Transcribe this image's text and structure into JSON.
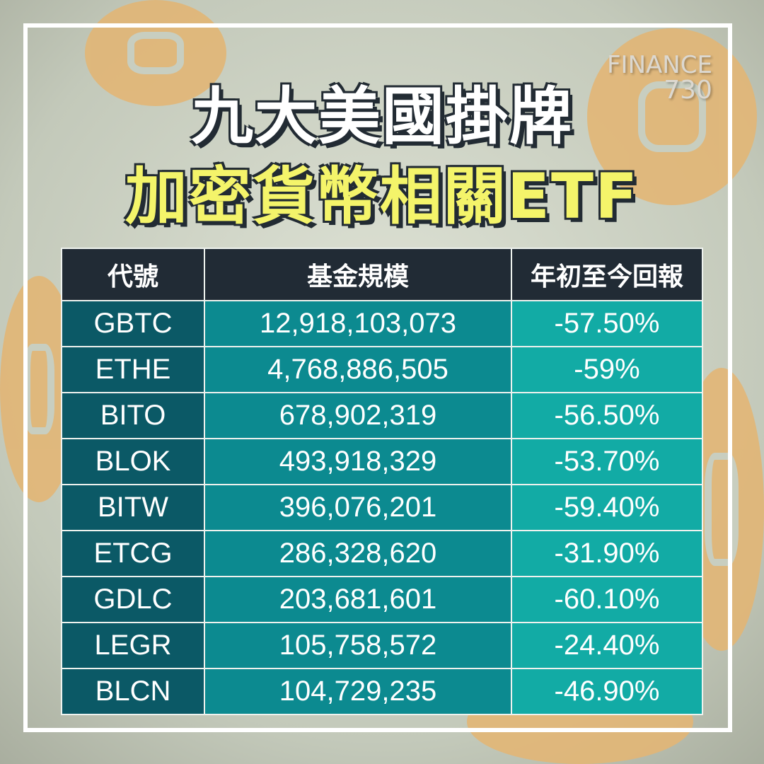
{
  "title": {
    "line1": "九大美國掛牌",
    "line2": "加密貨幣相關ETF"
  },
  "logo": {
    "text": "FINANCE",
    "number": "730"
  },
  "colors": {
    "header": "#212b35",
    "col1": "#0b5966",
    "col2": "#0c8a90",
    "col3": "#12aba5",
    "title_highlight": "#f4f46a"
  },
  "table": {
    "headers": [
      "代號",
      "基金規模",
      "年初至今回報"
    ],
    "rows": [
      [
        "GBTC",
        "12,918,103,073",
        "-57.50%"
      ],
      [
        "ETHE",
        "4,768,886,505",
        "-59%"
      ],
      [
        "BITO",
        "678,902,319",
        "-56.50%"
      ],
      [
        "BLOK",
        "493,918,329",
        "-53.70%"
      ],
      [
        "BITW",
        "396,076,201",
        "-59.40%"
      ],
      [
        "ETCG",
        "286,328,620",
        "-31.90%"
      ],
      [
        "GDLC",
        "203,681,601",
        "-60.10%"
      ],
      [
        "LEGR",
        "105,758,572",
        "-24.40%"
      ],
      [
        "BLCN",
        "104,729,235",
        "-46.90%"
      ]
    ]
  }
}
